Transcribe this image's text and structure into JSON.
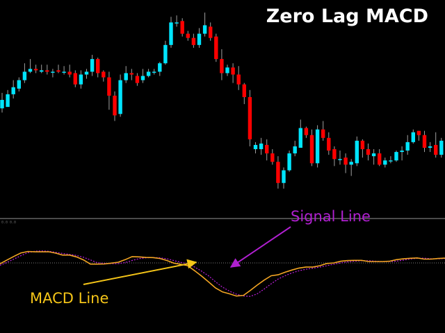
{
  "title": "Zero Lag MACD",
  "indicator_header": "0.0 0.0",
  "colors": {
    "background": "#000000",
    "bull": "#00E5FF",
    "bear": "#FF0000",
    "wick": "#A0A0A0",
    "macd": "#F5A623",
    "signal": "#C020E0",
    "annotation_macd": "#F5C518",
    "annotation_signal": "#B020D0",
    "separator": "#4A4A4A",
    "zero_line": "#808080",
    "title": "#FFFFFF"
  },
  "annotations": {
    "signal_label": "Signal Line",
    "macd_label": "MACD Line"
  },
  "chart_data": [
    {
      "type": "candlestick",
      "title": "Zero Lag MACD",
      "x": [
        1,
        2,
        3,
        4,
        5,
        6,
        7,
        8,
        9,
        10,
        11,
        12,
        13,
        14,
        15,
        16,
        17,
        18,
        19,
        20,
        21,
        22,
        23,
        24,
        25,
        26,
        27,
        28,
        29,
        30,
        31,
        32,
        33,
        34,
        35,
        36,
        37,
        38,
        39,
        40,
        41,
        42,
        43,
        44,
        45,
        46,
        47,
        48,
        49,
        50,
        51,
        52,
        53,
        54,
        55,
        56,
        57,
        58,
        59,
        60,
        61,
        62,
        63,
        64,
        65,
        66,
        67,
        68,
        69,
        70,
        71,
        72,
        73,
        74,
        75,
        76,
        77,
        78,
        79,
        80
      ],
      "candles": [
        [
          27,
          33,
          38,
          24
        ],
        [
          28,
          37,
          40,
          30
        ],
        [
          37,
          42,
          47,
          34
        ],
        [
          41,
          47,
          49,
          39
        ],
        [
          47,
          53,
          59,
          45
        ],
        [
          53,
          55,
          62,
          52
        ],
        [
          55,
          54,
          58,
          52
        ],
        [
          53,
          54,
          58,
          52
        ],
        [
          54,
          53,
          58,
          51
        ],
        [
          53,
          53,
          55,
          49
        ],
        [
          54,
          53,
          58,
          52
        ],
        [
          53,
          53,
          57,
          51
        ],
        [
          53,
          51,
          58,
          49
        ],
        [
          52,
          44,
          54,
          42
        ],
        [
          44,
          51,
          54,
          41
        ],
        [
          51,
          53,
          55,
          48
        ],
        [
          53,
          62,
          65,
          50
        ],
        [
          62,
          52,
          63,
          49
        ],
        [
          53,
          49,
          54,
          46
        ],
        [
          49,
          36,
          53,
          26
        ],
        [
          36,
          22,
          39,
          18
        ],
        [
          23,
          47,
          51,
          21
        ],
        [
          47,
          52,
          57,
          45
        ],
        [
          52,
          51,
          55,
          47
        ],
        [
          50,
          45,
          52,
          43
        ],
        [
          47,
          50,
          55,
          45
        ],
        [
          50,
          53,
          55,
          49
        ],
        [
          53,
          53,
          55,
          51
        ],
        [
          53,
          59,
          60,
          50
        ],
        [
          59,
          72,
          75,
          58
        ],
        [
          72,
          88,
          92,
          70
        ],
        [
          88,
          88,
          93,
          85
        ],
        [
          89,
          80,
          91,
          78
        ],
        [
          80,
          77,
          82,
          75
        ],
        [
          77,
          72,
          80,
          70
        ],
        [
          72,
          80,
          84,
          70
        ],
        [
          80,
          86,
          95,
          78
        ],
        [
          85,
          77,
          88,
          75
        ],
        [
          78,
          62,
          80,
          60
        ],
        [
          62,
          52,
          69,
          47
        ],
        [
          52,
          56,
          58,
          50
        ],
        [
          56,
          51,
          59,
          45
        ],
        [
          51,
          44,
          57,
          40
        ],
        [
          44,
          35,
          45,
          30
        ],
        [
          35,
          5,
          40,
          0
        ],
        [
          -2,
          1,
          3,
          -5
        ],
        [
          -2,
          2,
          6,
          -6
        ],
        [
          1,
          -5,
          5,
          -10
        ],
        [
          -5,
          -11,
          -2,
          -13
        ],
        [
          -11,
          -26,
          -7,
          -30
        ],
        [
          -26,
          -17,
          -15,
          -30
        ],
        [
          -17,
          -5,
          -3,
          -18
        ],
        [
          -5,
          0,
          4,
          -7
        ],
        [
          -1,
          13,
          19,
          -1
        ],
        [
          13,
          8,
          14,
          6
        ],
        [
          8,
          -12,
          12,
          -14
        ],
        [
          -12,
          12,
          15,
          -15
        ],
        [
          12,
          6,
          18,
          4
        ],
        [
          6,
          -3,
          10,
          -6
        ],
        [
          -2,
          -9,
          0,
          -14
        ],
        [
          -9,
          -9,
          -3,
          -13
        ],
        [
          -8,
          -13,
          -5,
          -19
        ],
        [
          -13,
          -11,
          -9,
          -21
        ],
        [
          -12,
          4,
          7,
          -14
        ],
        [
          4,
          -2,
          5,
          -8
        ],
        [
          -2,
          -6,
          2,
          -10
        ],
        [
          -7,
          -5,
          -2,
          -13
        ],
        [
          -5,
          -13,
          -2,
          -14
        ],
        [
          -13,
          -10,
          -8,
          -15
        ],
        [
          -10,
          -10,
          -7,
          -12
        ],
        [
          -10,
          -4,
          -3,
          -11
        ],
        [
          -4,
          -3,
          0,
          -10
        ],
        [
          -3,
          3,
          8,
          -6
        ],
        [
          3,
          10,
          12,
          2
        ],
        [
          11,
          8,
          11,
          4
        ],
        [
          8,
          -1,
          11,
          -4
        ],
        [
          -1,
          0,
          3,
          -4
        ],
        [
          1,
          -6,
          10,
          -8
        ],
        [
          -6,
          4,
          6,
          -8
        ],
        [
          4,
          10,
          13,
          2
        ]
      ]
    },
    {
      "type": "line",
      "zero_line": 0,
      "series": [
        {
          "name": "MACD Line",
          "x": [
            0,
            10,
            20,
            30,
            40,
            50,
            60,
            70,
            80,
            90,
            100,
            110,
            120,
            130,
            140,
            150,
            160,
            170,
            180,
            190,
            200,
            210,
            220,
            230,
            240,
            250,
            260,
            270,
            280,
            290,
            300,
            310,
            320,
            330,
            340,
            350,
            360,
            370,
            380,
            390,
            400,
            410,
            420,
            430,
            440,
            450,
            460,
            470,
            480,
            490,
            500,
            510,
            520,
            530,
            540,
            550,
            560,
            570,
            580,
            590,
            600,
            610,
            620,
            630,
            640
          ],
          "values": [
            -0.8,
            2.5,
            5.6,
            8.6,
            9.8,
            9.6,
            9.6,
            9.6,
            8.4,
            6.7,
            6.7,
            5.2,
            2.6,
            -1.0,
            -1.0,
            -0.9,
            -0.2,
            0.6,
            2.8,
            5.4,
            5.2,
            4.7,
            4.6,
            3.8,
            2.1,
            -0.2,
            -1.2,
            -2.4,
            -6.7,
            -11.3,
            -16.3,
            -21.5,
            -24.9,
            -26.5,
            -28.4,
            -27.9,
            -23.6,
            -19.0,
            -14.7,
            -11.0,
            -10.2,
            -8.0,
            -6.1,
            -4.4,
            -3.5,
            -3.5,
            -2.4,
            -0.5,
            0.0,
            1.4,
            2.0,
            2.2,
            2.2,
            1.2,
            1.2,
            1.2,
            1.4,
            2.8,
            3.5,
            4.0,
            4.3,
            3.3,
            3.3,
            3.8,
            4.1
          ]
        },
        {
          "name": "Signal Line",
          "x": [
            0,
            10,
            20,
            30,
            40,
            50,
            60,
            70,
            80,
            90,
            100,
            110,
            120,
            130,
            140,
            150,
            160,
            170,
            180,
            190,
            200,
            210,
            220,
            230,
            240,
            250,
            260,
            270,
            280,
            290,
            300,
            310,
            320,
            330,
            340,
            350,
            360,
            370,
            380,
            390,
            400,
            410,
            420,
            430,
            440,
            450,
            460,
            470,
            480,
            490,
            500,
            510,
            520,
            530,
            540,
            550,
            560,
            570,
            580,
            590,
            600,
            610,
            620,
            630,
            640
          ],
          "values": [
            -2.0,
            0.5,
            3.3,
            6.2,
            8.8,
            10.0,
            10.3,
            10.0,
            9.1,
            8.1,
            7.3,
            6.4,
            4.9,
            2.6,
            0.1,
            -0.3,
            -0.6,
            -0.6,
            0.3,
            2.1,
            3.7,
            4.4,
            4.6,
            4.4,
            3.6,
            2.0,
            0.5,
            -0.8,
            -3.6,
            -7.1,
            -11.1,
            -16.2,
            -20.8,
            -24.2,
            -26.8,
            -28.4,
            -28.7,
            -26.5,
            -22.4,
            -17.9,
            -13.8,
            -11.0,
            -8.6,
            -6.7,
            -5.4,
            -4.5,
            -3.6,
            -2.4,
            -1.1,
            0.0,
            0.9,
            1.5,
            1.9,
            1.9,
            1.5,
            1.2,
            1.2,
            1.5,
            2.4,
            3.4,
            4.0,
            4.1,
            3.6,
            3.5,
            3.8
          ]
        }
      ]
    }
  ]
}
